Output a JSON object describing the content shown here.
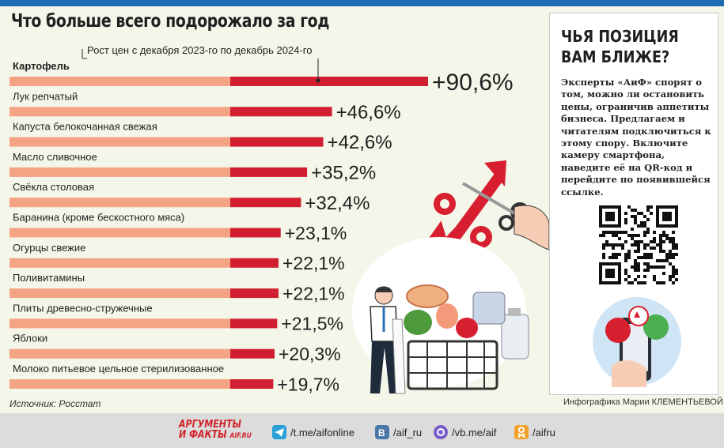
{
  "title": "Что больше всего подорожало за год",
  "chart_data": {
    "type": "bar",
    "orientation": "horizontal",
    "subtitle": "Рост цен с декабря 2023-го по декабрь 2024-го",
    "categories": [
      "Картофель",
      "Лук репчатый",
      "Капуста белокочанная свежая",
      "Масло сливочное",
      "Свёкла столовая",
      "Баранина (кроме бескостного мяса)",
      "Огурцы свежие",
      "Поливитамины",
      "Плиты древесно-стружечные",
      "Яблоки",
      "Молоко питьевое цельное стерилизованное"
    ],
    "values": [
      90.6,
      46.6,
      42.6,
      35.2,
      32.4,
      23.1,
      22.1,
      22.1,
      21.5,
      20.3,
      19.7
    ],
    "value_labels": [
      "+90,6%",
      "+46,6%",
      "+42,6%",
      "+35,2%",
      "+32,4%",
      "+23,1%",
      "+22,1%",
      "+22,1%",
      "+21,5%",
      "+20,3%",
      "+19,7%"
    ],
    "colors": {
      "base": "#f4a484",
      "bar": "#d11f31",
      "accent": "#d11f31"
    }
  },
  "source": "Источник: Росстат",
  "credit": "Инфографика Марии КЛЕМЕНТЬЕВОЙ",
  "sidebar": {
    "title": "ЧЬЯ ПОЗИЦИЯ\nВАМ БЛИЖЕ?",
    "text": "Эксперты «АиФ» спорят о том, можно ли остановить цены, ограничив аппетиты бизнеса. Предлагаем и читателям подключиться к этому спору. Включите камеру смартфона, наведите её на QR-код и перейдите по появившейся ссылке."
  },
  "footer": {
    "logo_line1": "АРГУМЕНТЫ",
    "logo_line2": "И ФАКТЫ",
    "logo_domain": "AIF.RU",
    "links": [
      {
        "icon": "telegram-icon",
        "text": "/t.me/aifonline",
        "color": "#2a9fd8"
      },
      {
        "icon": "vk-icon",
        "text": "/aif_ru",
        "color": "#4a76a8"
      },
      {
        "icon": "viber-icon",
        "text": "/vb.me/aif",
        "color": "#7a5cc8"
      },
      {
        "icon": "odnoklassniki-icon",
        "text": "/aifru",
        "color": "#f2a229"
      }
    ]
  }
}
